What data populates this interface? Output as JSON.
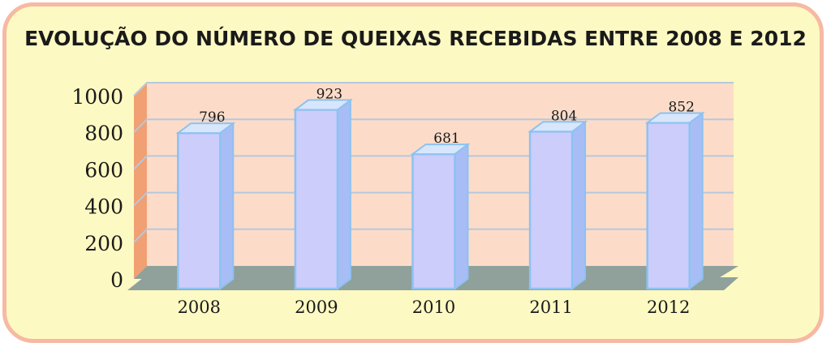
{
  "chart_data": {
    "type": "bar",
    "title": "EVOLUÇÃO DO NÚMERO DE QUEIXAS RECEBIDAS ENTRE 2008 E 2012",
    "categories": [
      "2008",
      "2009",
      "2010",
      "2011",
      "2012"
    ],
    "values": [
      796,
      923,
      681,
      804,
      852
    ],
    "xlabel": "",
    "ylabel": "",
    "ylim": [
      0,
      1000
    ],
    "yticks": [
      0,
      200,
      400,
      600,
      800,
      1000
    ],
    "grid": true,
    "legend": "none",
    "three_d": true
  },
  "colors": {
    "page_background": "#fdf9c2",
    "frame_border": "#f6b9a3",
    "plot_wall": "#fcdcc9",
    "side_wall": "#f0a072",
    "floor": "#8fa19a",
    "gridline": "#b6c8de",
    "bar_front": "#cccdfb",
    "bar_top": "#d8e6fb",
    "bar_side": "#a8bdf5",
    "bar_edge": "#8cc2f2"
  }
}
